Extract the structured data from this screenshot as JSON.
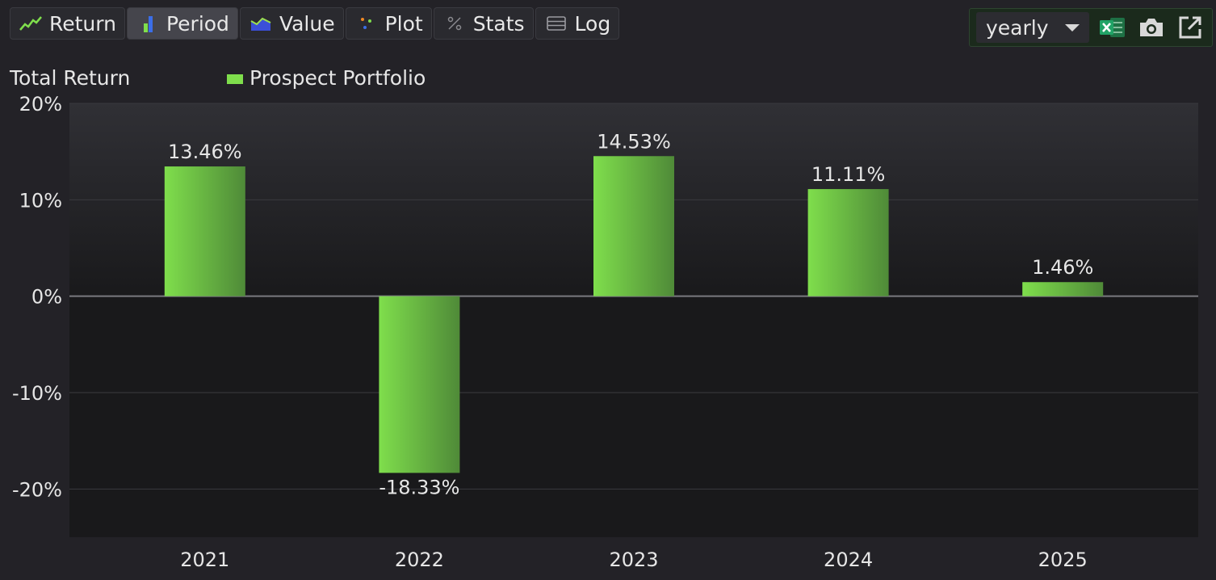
{
  "tabs": [
    {
      "label": "Return",
      "icon": "line-chart-icon",
      "active": false
    },
    {
      "label": "Period",
      "icon": "bar-chart-icon",
      "active": true
    },
    {
      "label": "Value",
      "icon": "area-chart-icon",
      "active": false
    },
    {
      "label": "Plot",
      "icon": "scatter-plot-icon",
      "active": false
    },
    {
      "label": "Stats",
      "icon": "percent-icon",
      "active": false
    },
    {
      "label": "Log",
      "icon": "table-icon",
      "active": false
    }
  ],
  "toolbar": {
    "period_select": "yearly",
    "icons": [
      "excel-export-icon",
      "camera-icon",
      "open-external-icon"
    ]
  },
  "colors": {
    "bar_light": "#7fde4c",
    "bar_dark": "#4f8a38",
    "background": "#232227",
    "plot_bg_top": "#303035",
    "plot_bg_bottom": "#19191b"
  },
  "chart_data": {
    "type": "bar",
    "title": "Total Return",
    "categories": [
      "2021",
      "2022",
      "2023",
      "2024",
      "2025"
    ],
    "series": [
      {
        "name": "Prospect Portfolio",
        "values": [
          13.46,
          -18.33,
          14.53,
          11.11,
          1.46
        ],
        "labels": [
          "13.46%",
          "-18.33%",
          "14.53%",
          "11.11%",
          "1.46%"
        ]
      }
    ],
    "yticks": [
      20,
      10,
      0,
      -10,
      -20
    ],
    "ytick_labels": [
      "20%",
      "10%",
      "0%",
      "-10%",
      "-20%"
    ],
    "ylim": [
      -25,
      20
    ],
    "grid": true,
    "legend": "top"
  }
}
